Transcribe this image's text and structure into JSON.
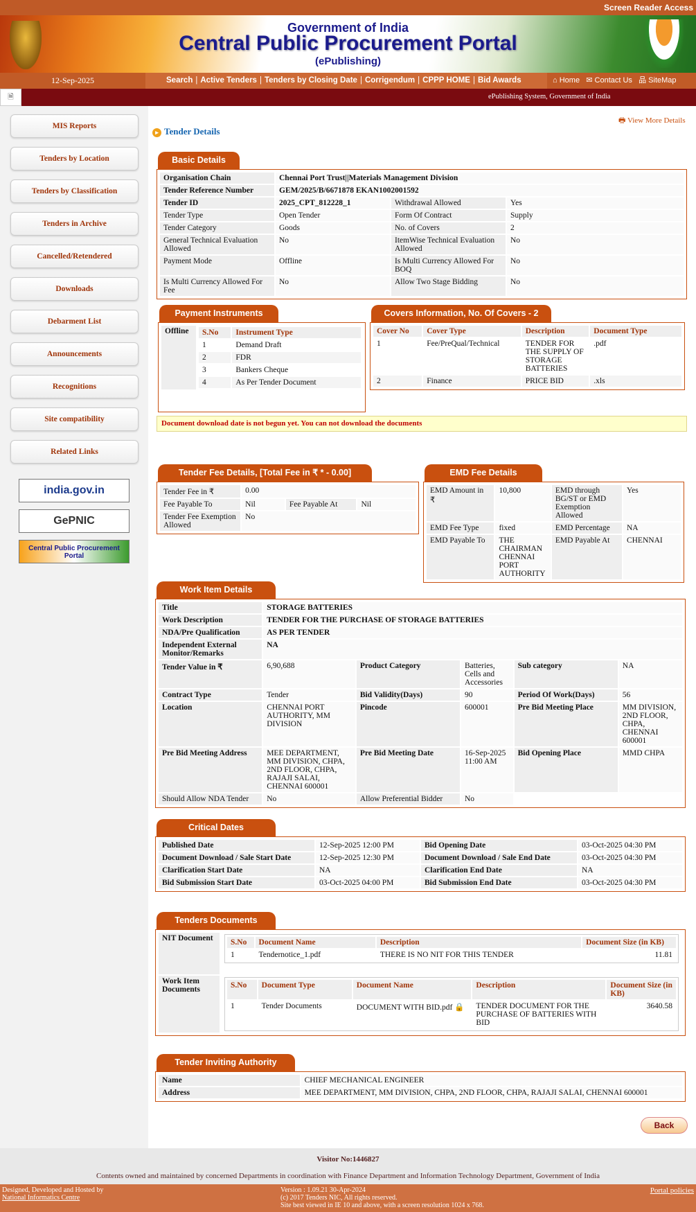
{
  "topbar": {
    "screen_reader": "Screen Reader Access"
  },
  "banner": {
    "line1": "Government of India",
    "line2": "Central Public Procurement Portal",
    "line3": "(ePublishing)",
    "emblem_text": "सत्यमेव जयते"
  },
  "nav": {
    "date": "12-Sep-2025",
    "links": [
      "Search",
      "Active Tenders",
      "Tenders by Closing Date",
      "Corrigendum",
      "CPPP HOME",
      "Bid Awards"
    ],
    "home": "Home",
    "contact": "Contact Us",
    "sitemap": "SiteMap",
    "system_text": "ePublishing System, Government of India"
  },
  "sidebar": {
    "items": [
      "MIS Reports",
      "Tenders by Location",
      "Tenders by Classification",
      "Tenders in Archive",
      "Cancelled/Retendered",
      "Downloads",
      "Debarment List",
      "Announcements",
      "Recognitions",
      "Site compatibility",
      "Related Links"
    ],
    "logos": [
      "india.gov.in",
      "GePNIC",
      "Central Public Procurement Portal"
    ]
  },
  "page": {
    "title": "Tender Details",
    "view_more": "View More Details"
  },
  "basic": {
    "title": "Basic Details",
    "rows": [
      [
        "Organisation Chain",
        "Chennai Port Trust||Materials Management Division"
      ],
      [
        "Tender Reference Number",
        "GEM/2025/B/6671878 EKAN1002001592"
      ],
      [
        "Tender ID",
        "2025_CPT_812228_1",
        "Withdrawal Allowed",
        "Yes"
      ],
      [
        "Tender Type",
        "Open Tender",
        "Form Of Contract",
        "Supply"
      ],
      [
        "Tender Category",
        "Goods",
        "No. of Covers",
        "2"
      ],
      [
        "General Technical Evaluation Allowed",
        "No",
        "ItemWise Technical Evaluation Allowed",
        "No"
      ],
      [
        "Payment Mode",
        "Offline",
        "Is Multi Currency Allowed For BOQ",
        "No"
      ],
      [
        "Is Multi Currency Allowed For Fee",
        "No",
        "Allow Two Stage Bidding",
        "No"
      ]
    ]
  },
  "payment": {
    "title": "Payment Instruments",
    "mode": "Offline",
    "headers": [
      "S.No",
      "Instrument Type"
    ],
    "rows": [
      [
        "1",
        "Demand Draft"
      ],
      [
        "2",
        "FDR"
      ],
      [
        "3",
        "Bankers Cheque"
      ],
      [
        "4",
        "As Per Tender Document"
      ]
    ]
  },
  "covers": {
    "title": "Covers Information, No. Of Covers - 2",
    "headers": [
      "Cover No",
      "Cover Type",
      "Description",
      "Document Type"
    ],
    "rows": [
      [
        "1",
        "Fee/PreQual/Technical",
        "TENDER FOR THE SUPPLY OF STORAGE BATTERIES",
        ".pdf"
      ],
      [
        "2",
        "Finance",
        "PRICE BID",
        ".xls"
      ]
    ]
  },
  "warning": "Document download date is not begun yet. You can not download the documents",
  "tender_fee": {
    "title": "Tender Fee Details, [Total Fee in ₹ * - 0.00]",
    "rows": [
      [
        "Tender Fee in ₹",
        "0.00"
      ],
      [
        "Fee Payable To",
        "Nil",
        "Fee Payable At",
        "Nil"
      ],
      [
        "Tender Fee Exemption Allowed",
        "No"
      ]
    ]
  },
  "emd": {
    "title": "EMD Fee Details",
    "rows": [
      [
        "EMD Amount in ₹",
        "10,800",
        "EMD through BG/ST or EMD Exemption Allowed",
        "Yes"
      ],
      [
        "EMD Fee Type",
        "fixed",
        "EMD Percentage",
        "NA"
      ],
      [
        "EMD Payable To",
        "THE CHAIRMAN CHENNAI PORT AUTHORITY",
        "EMD Payable At",
        "CHENNAI"
      ]
    ]
  },
  "work": {
    "title": "Work Item Details",
    "rows": [
      [
        "Title",
        "STORAGE BATTERIES"
      ],
      [
        "Work Description",
        "TENDER FOR THE PURCHASE OF STORAGE BATTERIES"
      ],
      [
        "NDA/Pre Qualification",
        "AS PER TENDER"
      ],
      [
        "Independent External Monitor/Remarks",
        "NA"
      ],
      [
        "Tender Value in ₹",
        "6,90,688",
        "Product Category",
        "Batteries, Cells and Accessories",
        "Sub category",
        "NA"
      ],
      [
        "Contract Type",
        "Tender",
        "Bid Validity(Days)",
        "90",
        "Period Of Work(Days)",
        "56"
      ],
      [
        "Location",
        "CHENNAI PORT AUTHORITY, MM DIVISION",
        "Pincode",
        "600001",
        "Pre Bid Meeting Place",
        "MM DIVISION, 2ND FLOOR, CHPA, CHENNAI 600001"
      ],
      [
        "Pre Bid Meeting Address",
        "MEE DEPARTMENT, MM DIVISION, CHPA, 2ND FLOOR, CHPA, RAJAJI SALAI, CHENNAI 600001",
        "Pre Bid Meeting Date",
        "16-Sep-2025 11:00 AM",
        "Bid Opening Place",
        "MMD CHPA"
      ],
      [
        "Should Allow NDA Tender",
        "No",
        "Allow Preferential Bidder",
        "No"
      ]
    ]
  },
  "dates": {
    "title": "Critical Dates",
    "rows": [
      [
        "Published Date",
        "12-Sep-2025 12:00 PM",
        "Bid Opening Date",
        "03-Oct-2025 04:30 PM"
      ],
      [
        "Document Download / Sale Start Date",
        "12-Sep-2025 12:30 PM",
        "Document Download / Sale End Date",
        "03-Oct-2025 04:30 PM"
      ],
      [
        "Clarification Start Date",
        "NA",
        "Clarification End Date",
        "NA"
      ],
      [
        "Bid Submission Start Date",
        "03-Oct-2025 04:00 PM",
        "Bid Submission End Date",
        "03-Oct-2025 04:30 PM"
      ]
    ]
  },
  "docs": {
    "title": "Tenders Documents",
    "nit_label": "NIT Document",
    "nit_headers": [
      "S.No",
      "Document Name",
      "Description",
      "Document Size (in KB)"
    ],
    "nit_rows": [
      [
        "1",
        "Tendernotice_1.pdf",
        "THERE IS NO NIT FOR THIS TENDER",
        "11.81"
      ]
    ],
    "work_label": "Work Item Documents",
    "work_headers": [
      "S.No",
      "Document Type",
      "Document Name",
      "Description",
      "Document Size (in KB)"
    ],
    "work_rows": [
      [
        "1",
        "Tender Documents",
        "DOCUMENT WITH BID.pdf",
        "TENDER DOCUMENT FOR THE PURCHASE OF BATTERIES WITH BID",
        "3640.58"
      ]
    ]
  },
  "authority": {
    "title": "Tender Inviting Authority",
    "rows": [
      [
        "Name",
        "CHIEF MECHANICAL ENGINEER"
      ],
      [
        "Address",
        "MEE DEPARTMENT, MM DIVISION, CHPA, 2ND FLOOR, CHPA, RAJAJI SALAI, CHENNAI 600001"
      ]
    ]
  },
  "back": "Back",
  "footer": {
    "visitor": "Visitor No:1446827",
    "contents": "Contents owned and maintained by concerned Departments in coordination with Finance Department and Information Technology Department, Government of India",
    "designed": "Designed, Developed and Hosted by",
    "nic": "National Informatics Centre",
    "version": "Version : 1.09.21 30-Apr-2024",
    "copyright": "(c) 2017 Tenders NIC, All rights reserved.",
    "best_viewed": "Site best viewed in IE 10 and above, with a screen resolution 1024 x 768.",
    "policies": "Portal policies"
  },
  "colors": {
    "accent": "#c9500f",
    "dark_red": "#7a0b10",
    "footer": "#cf7142"
  }
}
